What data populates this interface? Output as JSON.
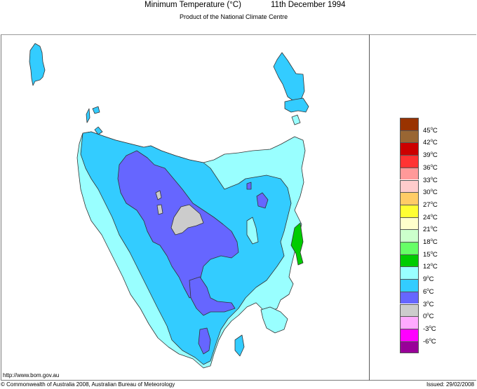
{
  "header": {
    "title": "Minimum Temperature (°C)",
    "date": "11th December 1994",
    "subtitle": "Product of the National Climate Centre"
  },
  "legend": {
    "items": [
      {
        "label": "45°C",
        "color": "#993300"
      },
      {
        "label": "42°C",
        "color": "#996633"
      },
      {
        "label": "39°C",
        "color": "#cc0000"
      },
      {
        "label": "36°C",
        "color": "#ff3333"
      },
      {
        "label": "33°C",
        "color": "#ff9999"
      },
      {
        "label": "30°C",
        "color": "#ffcccc"
      },
      {
        "label": "27°C",
        "color": "#ffcc66"
      },
      {
        "label": "24°C",
        "color": "#ffff33"
      },
      {
        "label": "21°C",
        "color": "#ffffcc"
      },
      {
        "label": "18°C",
        "color": "#ccffcc"
      },
      {
        "label": "15°C",
        "color": "#66ff66"
      },
      {
        "label": "12°C",
        "color": "#00cc00"
      },
      {
        "label": "9°C",
        "color": "#99ffff"
      },
      {
        "label": "6°C",
        "color": "#33ccff"
      },
      {
        "label": "3°C",
        "color": "#6666ff"
      },
      {
        "label": "0°C",
        "color": "#cccccc"
      },
      {
        "label": "-3°C",
        "color": "#ffaaff"
      },
      {
        "label": "-6°C",
        "color": "#ff00ff"
      },
      {
        "label": "",
        "color": "#990099"
      }
    ]
  },
  "map": {
    "region": "Tasmania",
    "zone_colors": {
      "below_3": "#cccccc",
      "3_to_6": "#6666ff",
      "6_to_9": "#33ccff",
      "9_to_12": "#99ffff",
      "12_to_15": "#00cc00"
    }
  },
  "footer": {
    "url": "http://www.bom.gov.au",
    "copyright": "© Commonwealth of Australia 2008, Australian Bureau of Meteorology",
    "issued": "Issued: 29/02/2008"
  }
}
